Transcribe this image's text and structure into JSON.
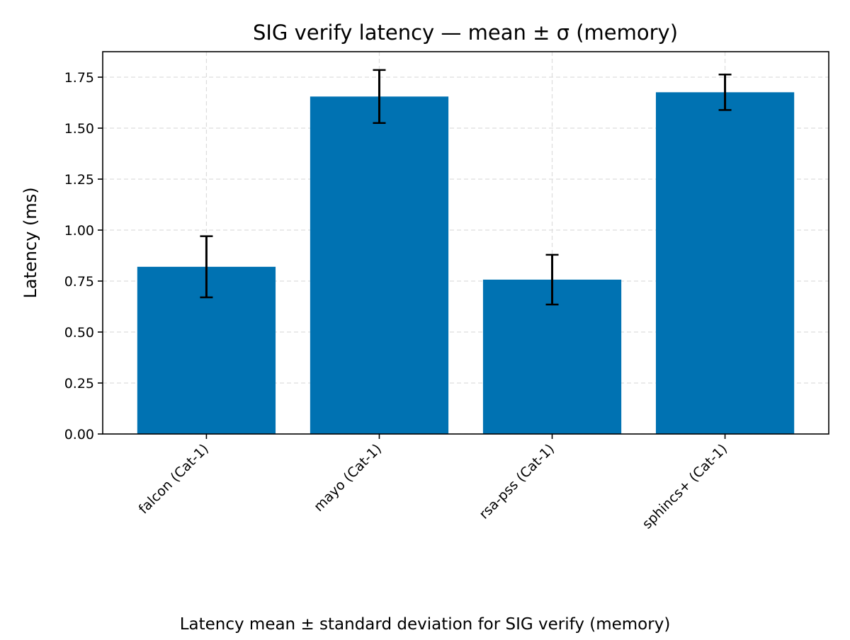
{
  "chart_data": {
    "type": "bar",
    "title": "SIG verify latency — mean ± σ (memory)",
    "xlabel": "",
    "ylabel": "Latency (ms)",
    "caption": "Latency mean ± standard deviation for SIG verify (memory)",
    "categories": [
      "falcon (Cat-1)",
      "mayo (Cat-1)",
      "rsa-pss (Cat-1)",
      "sphincs+ (Cat-1)"
    ],
    "values": [
      0.82,
      1.655,
      0.757,
      1.676
    ],
    "errors": [
      0.15,
      0.13,
      0.122,
      0.087
    ],
    "ylim": [
      0,
      1.875
    ],
    "yticks": [
      0.0,
      0.25,
      0.5,
      0.75,
      1.0,
      1.25,
      1.5,
      1.75
    ],
    "ytick_labels": [
      "0.00",
      "0.25",
      "0.50",
      "0.75",
      "1.00",
      "1.25",
      "1.50",
      "1.75"
    ],
    "grid": true,
    "legend": "none",
    "colors": {
      "bar": "#0072B2",
      "error_bar": "#000000",
      "grid": "#dddddd",
      "axis": "#000000"
    }
  }
}
